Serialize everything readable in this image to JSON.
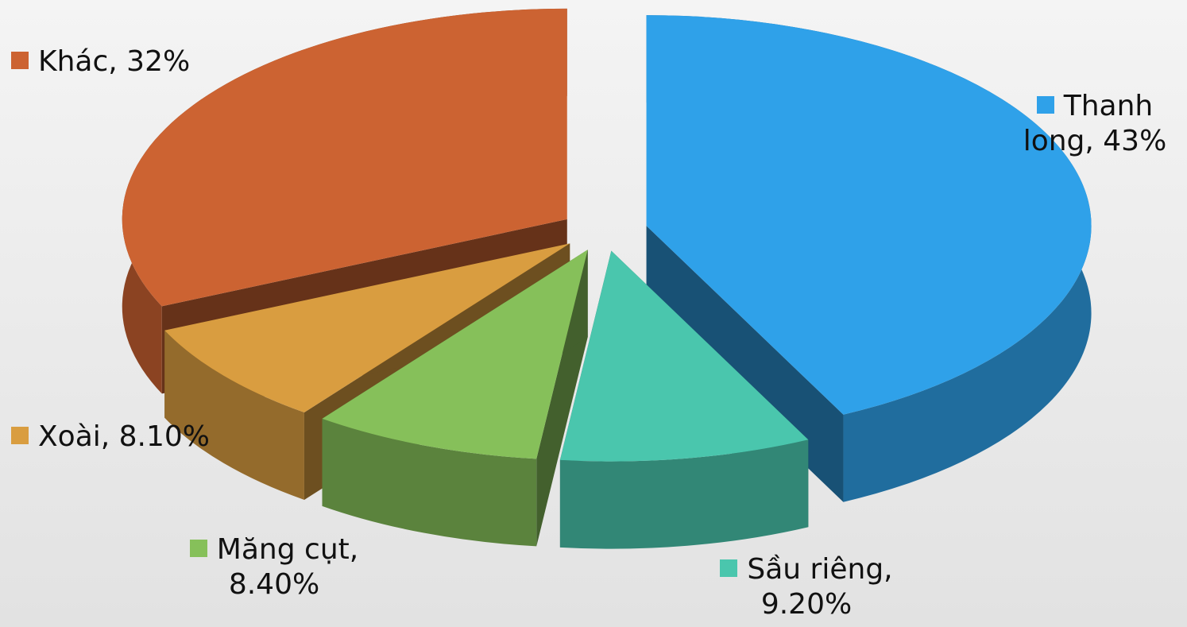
{
  "chart_data": {
    "type": "pie",
    "values": [
      43,
      9.2,
      8.4,
      8.1,
      32
    ],
    "value_labels": [
      "Thanh long, 43%",
      "Sầu riêng, 9.20%",
      "Măng cụt, 8.40%",
      "Xoài, 8.10%",
      "Khác, 32%"
    ],
    "colors": [
      "#2fa1e9",
      "#4ac6ad",
      "#86c05a",
      "#d99d40",
      "#cc6332"
    ]
  }
}
